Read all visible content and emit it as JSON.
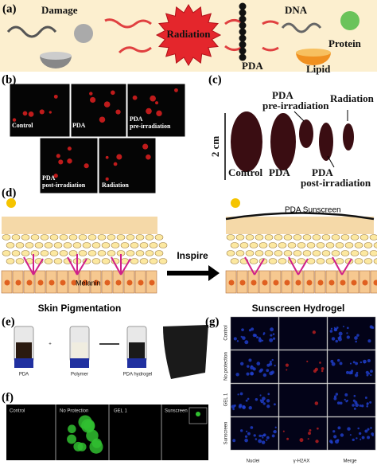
{
  "panel_a": {
    "label": "(a)",
    "damage": "Damage",
    "radiation": "Radiation",
    "dna": "DNA",
    "protein": "Protein",
    "pda": "PDA",
    "lipid": "Lipid"
  },
  "panel_b": {
    "label": "(b)",
    "control": "Control",
    "pda": "PDA",
    "pre": [
      "PDA",
      "pre-irradiation"
    ],
    "post": [
      "PDA",
      "post-irradiation"
    ],
    "radiation": "Radiation"
  },
  "panel_c": {
    "label": "(c)",
    "scale": "2 cm",
    "control": "Control",
    "pda": "PDA",
    "pre": [
      "PDA",
      "pre-irradiation"
    ],
    "post": [
      "PDA",
      "post-irradiation"
    ],
    "radiation": "Radiation"
  },
  "panel_d": {
    "label": "(d)",
    "sunscreen_label": "PDA Sunscreen",
    "inspire": "Inspire",
    "melanin": "Melanin",
    "left_caption": "Skin Pigmentation",
    "right_caption": "Sunscreen Hydrogel"
  },
  "panel_e": {
    "label": "(e)",
    "pda": "PDA",
    "plus": "+",
    "polymer": "Polymer",
    "hydrogel": "PDA hydrogel"
  },
  "panel_f": {
    "label": "(f)",
    "columns": [
      "Control",
      "No Protection",
      "GEL 1",
      "Sunscreen"
    ]
  },
  "panel_g": {
    "label": "(g)",
    "rows": [
      "Control",
      "No protection",
      "GEL 1",
      "Sunscreen"
    ],
    "columns": [
      "Nuclei",
      "γ-H2AX",
      "Merge"
    ]
  }
}
